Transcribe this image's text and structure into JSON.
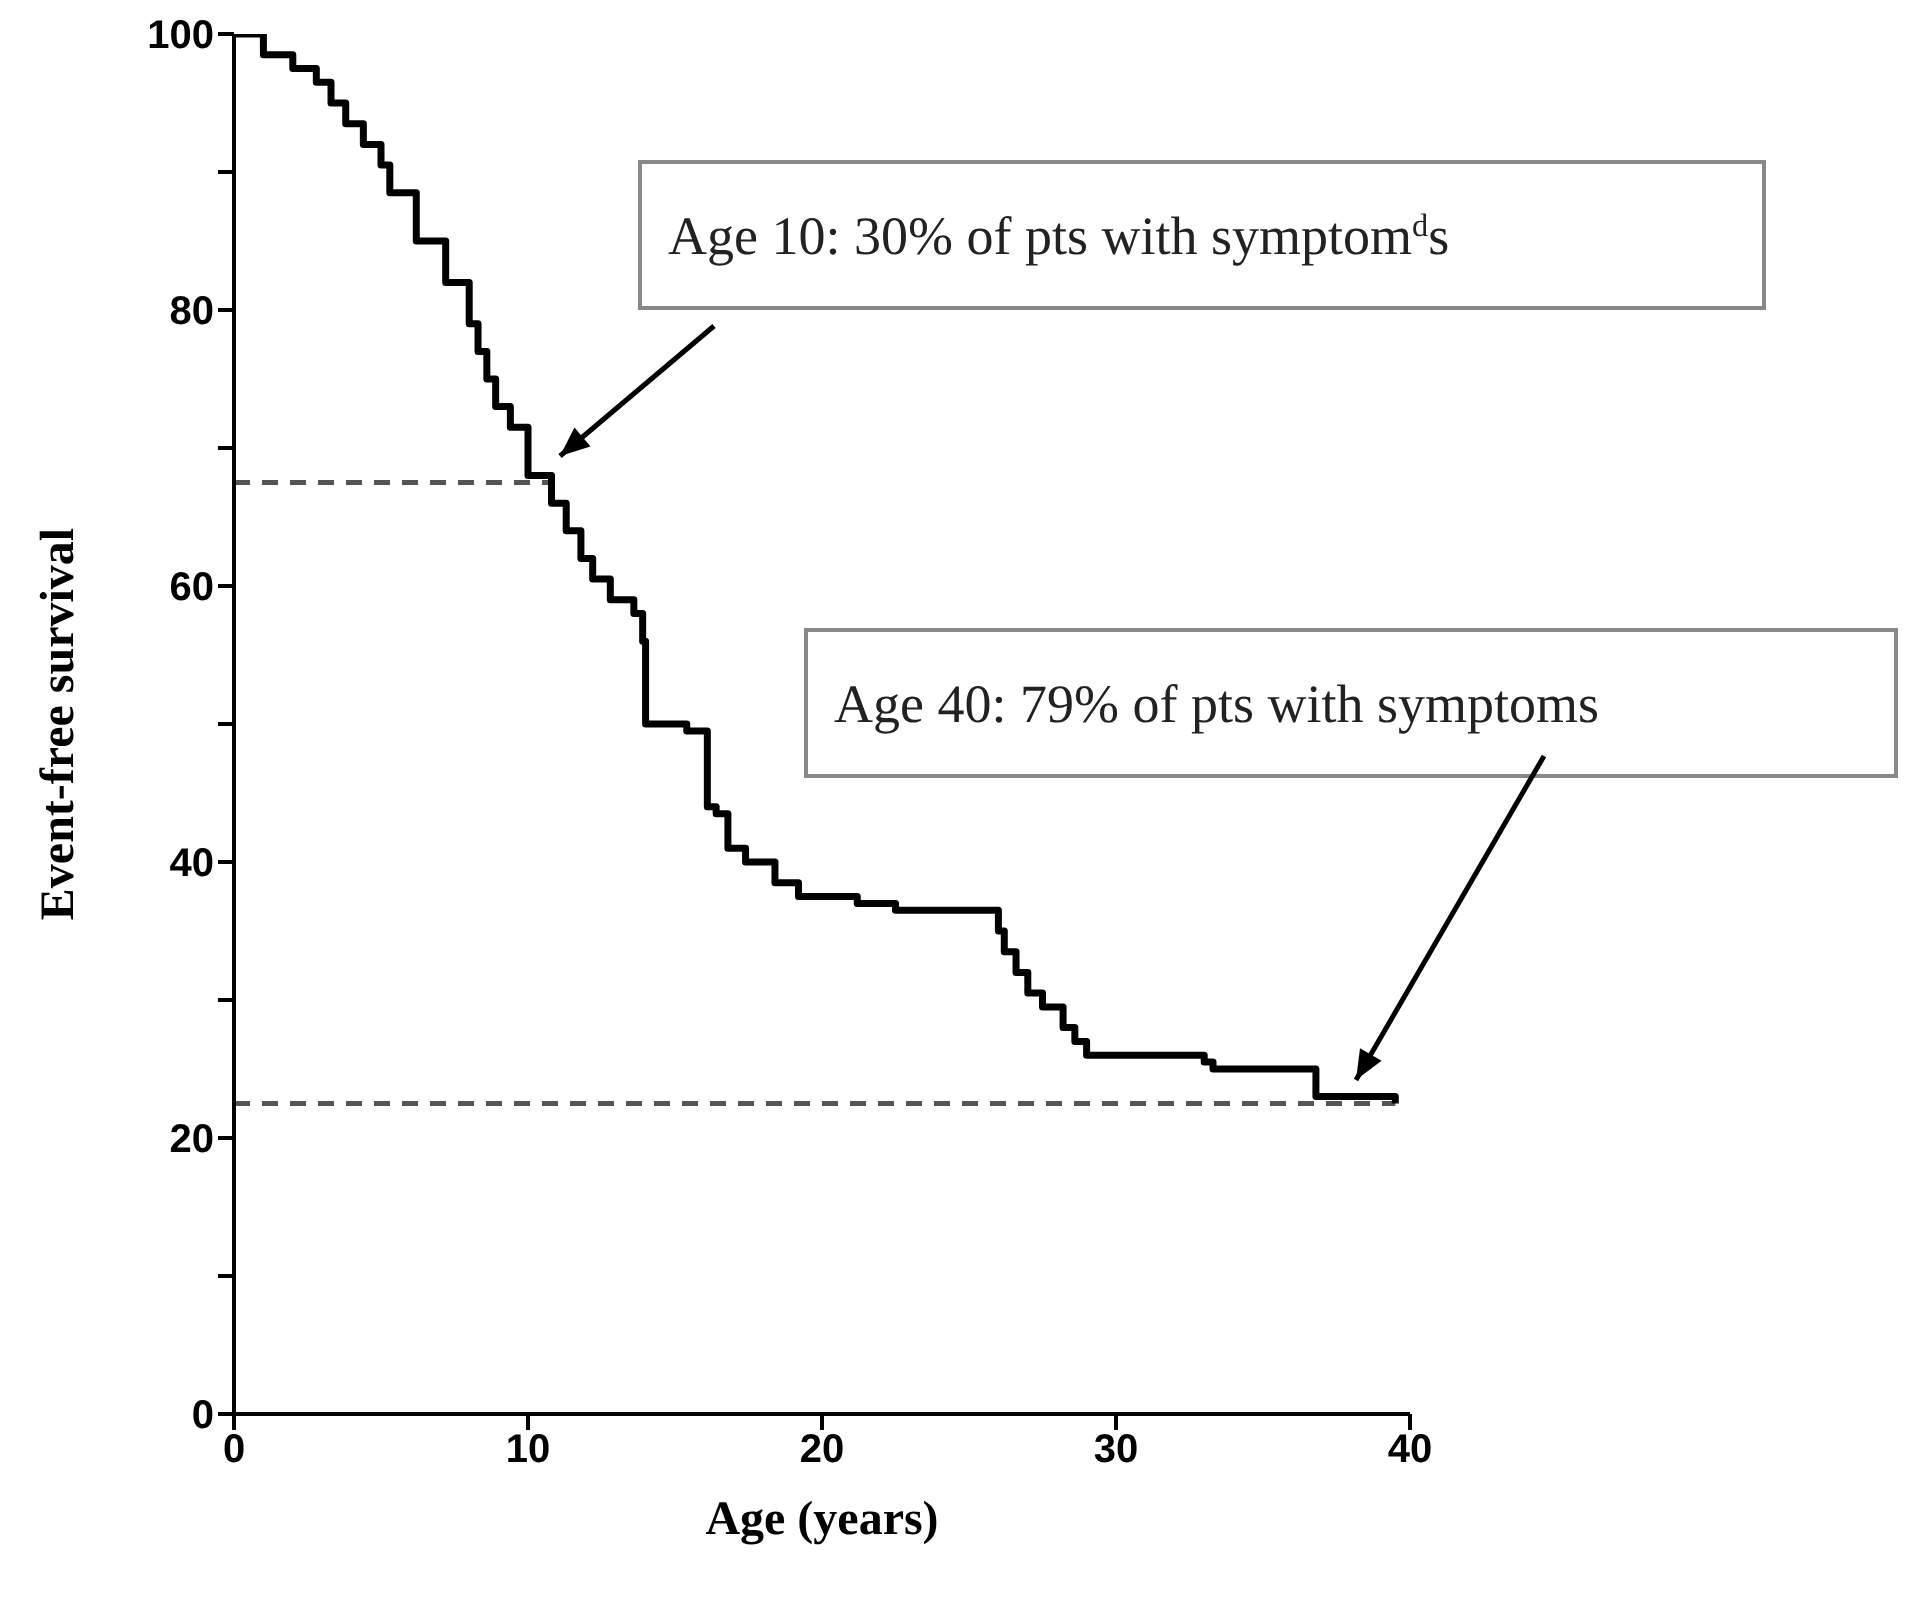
{
  "chart_data": {
    "type": "step",
    "xlabel": "Age (years)",
    "ylabel": "Event-free survival",
    "x": [
      0,
      1.0,
      2.0,
      2.8,
      3.3,
      3.8,
      4.4,
      5.0,
      5.3,
      6.2,
      7.2,
      8.0,
      8.3,
      8.6,
      8.9,
      9.4,
      10.0,
      10.8,
      11.3,
      11.8,
      12.2,
      12.8,
      13.6,
      13.9,
      14.0,
      15.4,
      16.1,
      16.4,
      16.8,
      17.4,
      18.4,
      19.2,
      21.2,
      22.5,
      26.0,
      26.2,
      26.6,
      27.0,
      27.5,
      28.2,
      28.6,
      29.0,
      33.0,
      33.3,
      36.8,
      39.5
    ],
    "series": [
      {
        "color": "#000000",
        "values": [
          100,
          98.5,
          97.5,
          96.5,
          95,
          93.5,
          92,
          90.5,
          88.5,
          85,
          82,
          79,
          77,
          75,
          73,
          71.5,
          68,
          66,
          64,
          62,
          60.5,
          59,
          58,
          56,
          50,
          49.5,
          44,
          43.5,
          41,
          40,
          38.5,
          37.5,
          37,
          36.5,
          35,
          33.5,
          32,
          30.5,
          29.5,
          28,
          27,
          26,
          25.5,
          25,
          23,
          22.5
        ]
      }
    ],
    "xlim": [
      0,
      40
    ],
    "xticks": [
      0,
      10,
      20,
      30,
      40
    ],
    "ylim": [
      0,
      100
    ],
    "yticks": [
      0,
      {
        "value": 10,
        "label": null
      },
      20,
      {
        "value": 30,
        "label": null
      },
      40,
      {
        "value": 50,
        "label": null
      },
      60,
      {
        "value": 70,
        "label": null
      },
      80,
      {
        "value": 90,
        "label": null
      },
      100
    ],
    "ref_lines": [
      {
        "axis": "y",
        "value": 67.5,
        "color": "#555555",
        "line_style": "dashed"
      },
      {
        "axis": "y",
        "value": 22.5,
        "color": "#555555",
        "line_style": "dashed"
      }
    ],
    "annotations": [
      "Age 10: 30% of pts with symptom$^{d}$s",
      "Age 40: 79% of pts with symptoms"
    ],
    "grid": false,
    "legend": false,
    "marker": "none",
    "line_style": "solid"
  }
}
